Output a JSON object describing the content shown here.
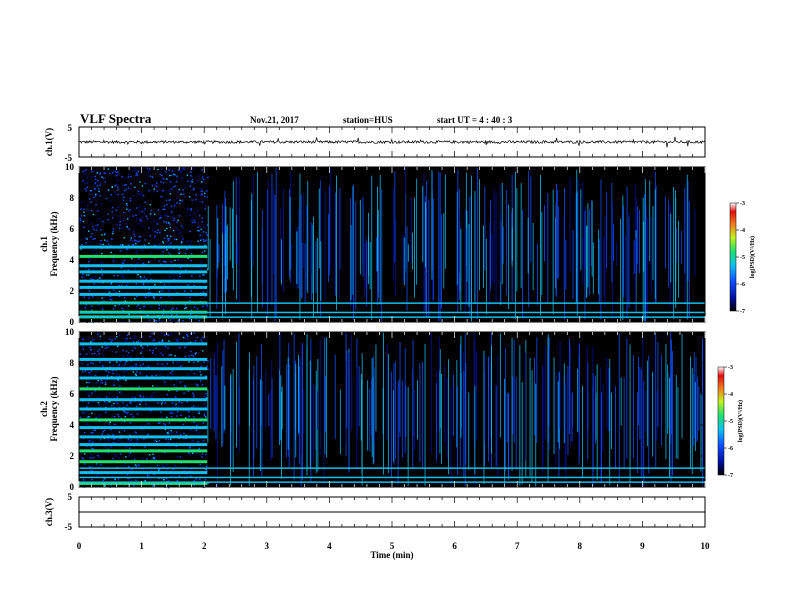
{
  "header": {
    "title": "VLF Spectra",
    "date": "Nov.21, 2017",
    "station": "station=HUS",
    "start": "start UT =  4 : 40 : 3"
  },
  "chart_data": [
    {
      "type": "line",
      "panel": "ch1-waveform",
      "ylabel": "ch.1(V)",
      "ylim": [
        -5,
        5
      ],
      "yticks": [
        "5",
        "-5"
      ],
      "description_values": {
        "baseline": 0.0
      },
      "xlim": [
        0,
        10
      ]
    },
    {
      "type": "heatmap",
      "panel": "ch1-spectrogram",
      "ylabel": "ch.1\nFrequency (kHz)",
      "ylim": [
        0,
        10
      ],
      "yticks": [
        "0",
        "2",
        "4",
        "6",
        "8",
        "10"
      ],
      "xlim": [
        0,
        10
      ],
      "switch_time_min": 2.05,
      "bands_khz": [
        0.3,
        0.6,
        1.2,
        1.75,
        2.2,
        2.6,
        3.2,
        3.6,
        4.2,
        4.8
      ],
      "colorbar": {
        "label": "log(PSD)(V²/Hz)",
        "range": [
          -7,
          -3
        ],
        "ticks": [
          "-3",
          "-4",
          "-5",
          "-6",
          "-7"
        ]
      }
    },
    {
      "type": "heatmap",
      "panel": "ch2-spectrogram",
      "ylabel": "ch.2\nFrequency (kHz)",
      "ylim": [
        0,
        10
      ],
      "yticks": [
        "0",
        "2",
        "4",
        "6",
        "8",
        "10"
      ],
      "xlim": [
        0,
        10
      ],
      "switch_time_min": 2.05,
      "bands_khz": [
        0.2,
        0.9,
        1.6,
        2.3,
        2.7,
        3.2,
        3.8,
        4.3,
        5.0,
        5.6,
        6.3,
        7.0,
        7.6,
        8.2,
        9.2
      ],
      "colorbar": {
        "label": "log(PSD)(V²/Hz)",
        "range": [
          -7,
          -3
        ],
        "ticks": [
          "-3",
          "-4",
          "-5",
          "-6",
          "-7"
        ]
      }
    },
    {
      "type": "line",
      "panel": "ch3-waveform",
      "ylabel": "ch.3(V)",
      "ylim": [
        -5,
        5
      ],
      "yticks": [
        "5",
        "-5"
      ],
      "description_values": {
        "baseline": -1.5
      },
      "xlim": [
        0,
        10
      ],
      "xlabel": "Time (min)",
      "xticks": [
        "0",
        "1",
        "2",
        "3",
        "4",
        "5",
        "6",
        "7",
        "8",
        "9",
        "10"
      ]
    }
  ],
  "colors": {
    "low": "#000000",
    "mid_low": "#1030c0",
    "mid": "#10a8e0",
    "mid_high": "#30e060",
    "high": "#e02020"
  }
}
